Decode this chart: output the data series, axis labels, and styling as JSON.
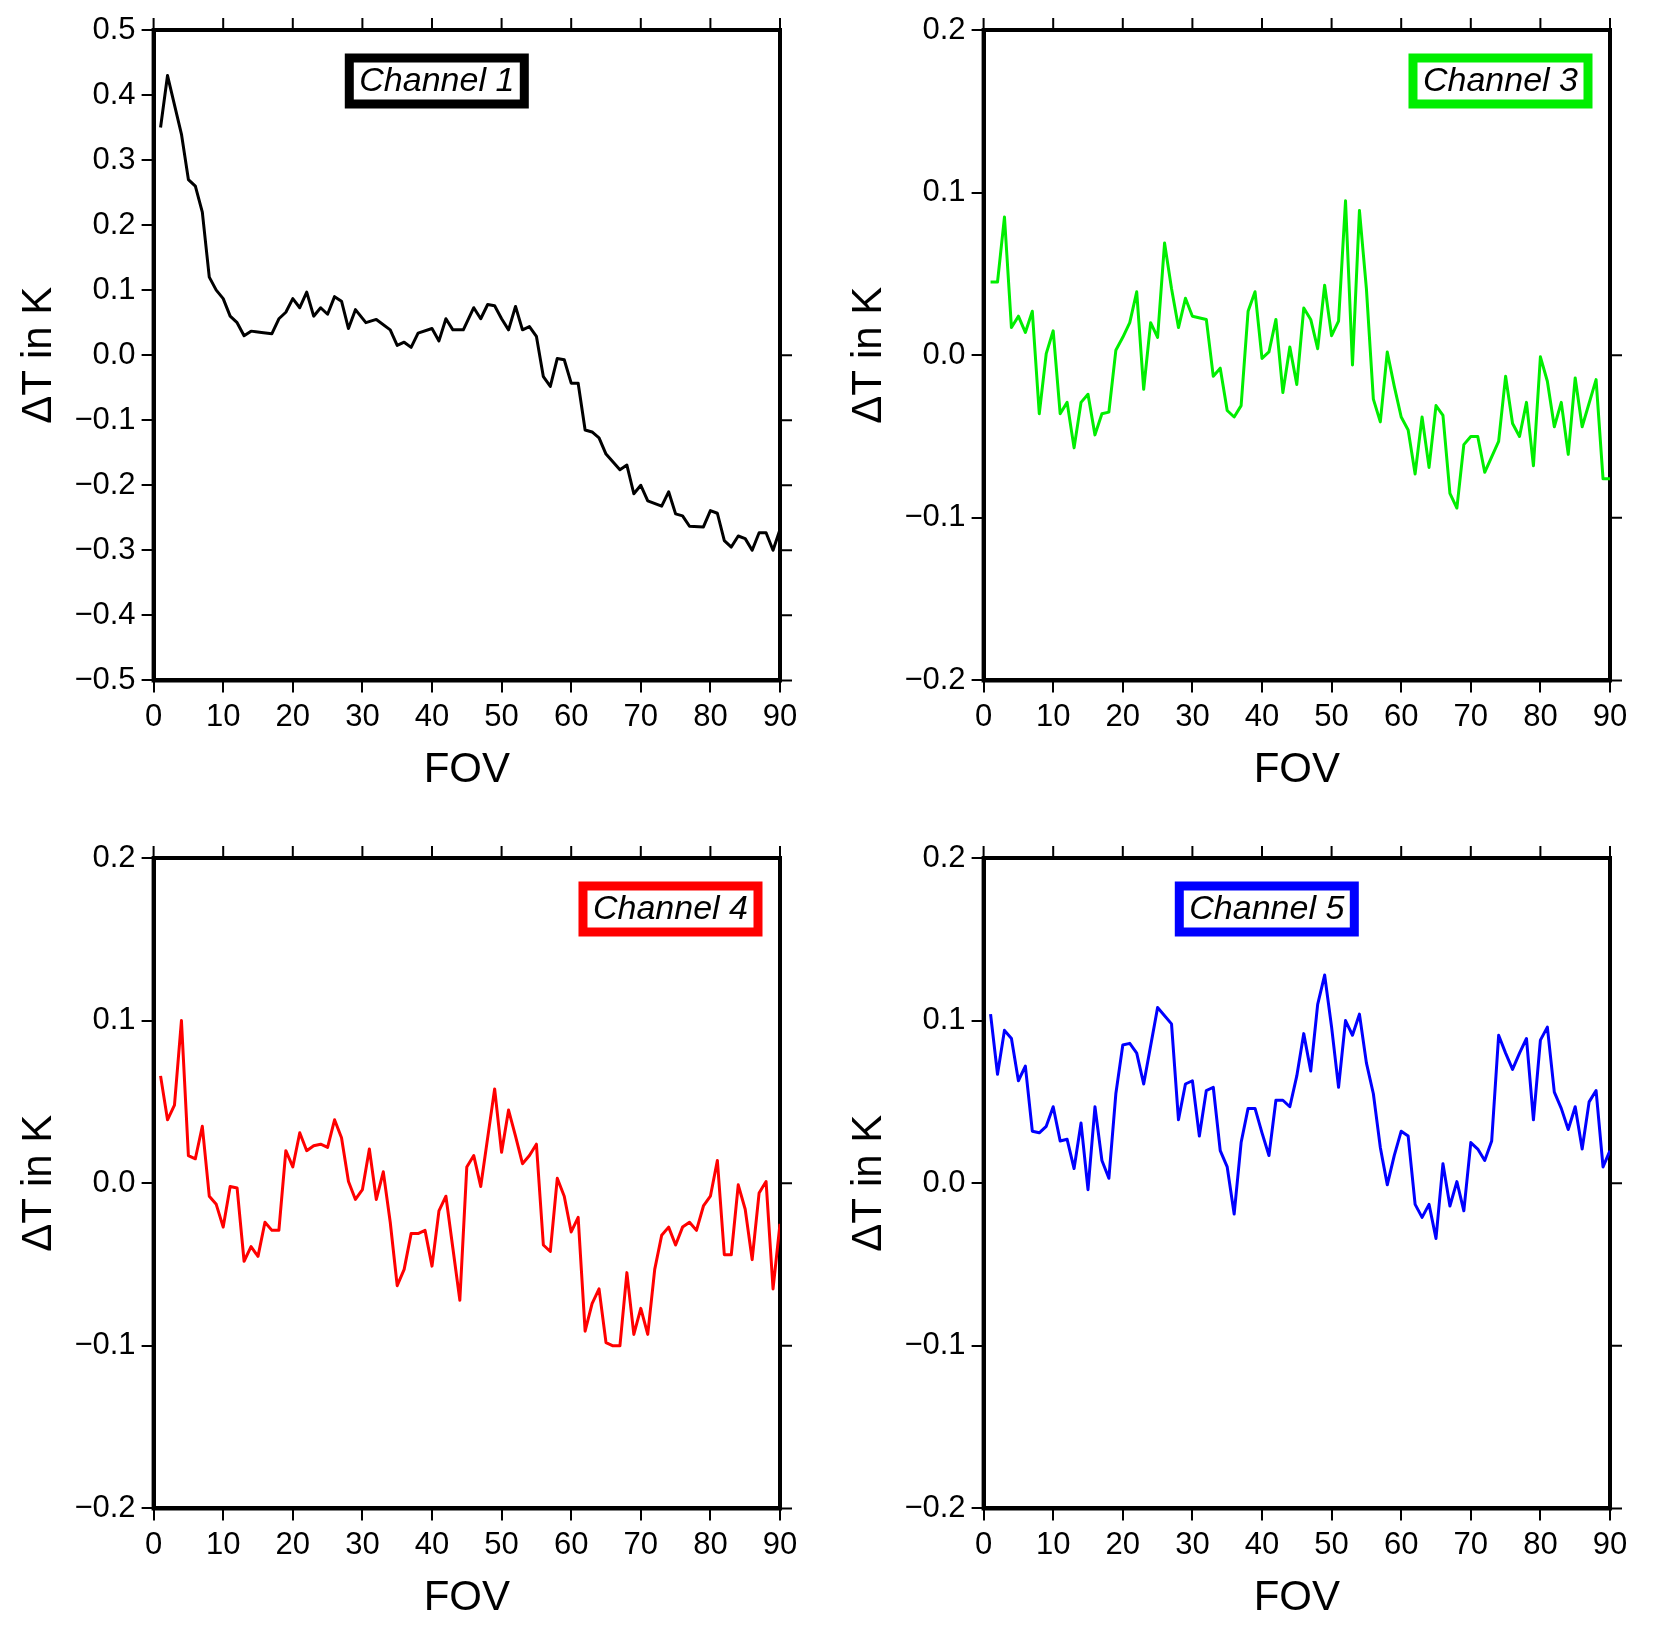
{
  "chart_data": [
    {
      "type": "line",
      "xlabel": "FOV",
      "ylabel": "ΔT in K",
      "legend": "top",
      "xlim": [
        0,
        90
      ],
      "xticks": [
        0,
        10,
        20,
        30,
        40,
        50,
        60,
        70,
        80,
        90
      ],
      "ylim": [
        -0.5,
        0.5
      ],
      "yticks": [
        {
          "value": -0.5,
          "label": "−0.5"
        },
        {
          "value": -0.4,
          "label": "−0.4"
        },
        {
          "value": -0.3,
          "label": "−0.3"
        },
        {
          "value": -0.2,
          "label": "−0.2"
        },
        {
          "value": -0.1,
          "label": "−0.1"
        },
        {
          "value": 0,
          "label": "0.0"
        },
        0.1,
        0.2,
        0.3,
        0.4,
        0.5
      ],
      "x": [
        1,
        2,
        4,
        5,
        6,
        7,
        8,
        9,
        10,
        11,
        12,
        13,
        14,
        15.5,
        17,
        18,
        19,
        20,
        21,
        22,
        23,
        24,
        25,
        26,
        27,
        28,
        29,
        30.5,
        32,
        34,
        35,
        36,
        37,
        38,
        40,
        41,
        42,
        43,
        44.5,
        46,
        47,
        48,
        49,
        50,
        51,
        52,
        53,
        54,
        55,
        56,
        57,
        58,
        59,
        60,
        61,
        62,
        63,
        64,
        65,
        67,
        68,
        69,
        70,
        71,
        73,
        74,
        75,
        76,
        77,
        79,
        80,
        81,
        82,
        83,
        84,
        85,
        86,
        87,
        88,
        89,
        90
      ],
      "series": [
        {
          "name": "Channel 1",
          "color": "#000000",
          "values": [
            0.35,
            0.43,
            0.34,
            0.27,
            0.26,
            0.22,
            0.12,
            0.1,
            0.087,
            0.06,
            0.05,
            0.03,
            0.037,
            0.035,
            0.033,
            0.056,
            0.066,
            0.087,
            0.073,
            0.097,
            0.06,
            0.073,
            0.063,
            0.09,
            0.083,
            0.041,
            0.07,
            0.05,
            0.055,
            0.039,
            0.015,
            0.02,
            0.012,
            0.034,
            0.041,
            0.022,
            0.056,
            0.039,
            0.039,
            0.073,
            0.056,
            0.078,
            0.076,
            0.056,
            0.039,
            0.075,
            0.039,
            0.044,
            0.029,
            -0.033,
            -0.048,
            -0.005,
            -0.007,
            -0.043,
            -0.043,
            -0.115,
            -0.118,
            -0.127,
            -0.152,
            -0.176,
            -0.169,
            -0.213,
            -0.2,
            -0.224,
            -0.232,
            -0.21,
            -0.244,
            -0.247,
            -0.263,
            -0.264,
            -0.239,
            -0.243,
            -0.285,
            -0.295,
            -0.278,
            -0.282,
            -0.3,
            -0.273,
            -0.273,
            -0.3,
            -0.268
          ]
        }
      ]
    },
    {
      "type": "line",
      "xlabel": "FOV",
      "ylabel": "ΔT in K",
      "legend": "top right",
      "xlim": [
        0,
        90
      ],
      "xticks": [
        0,
        10,
        20,
        30,
        40,
        50,
        60,
        70,
        80,
        90
      ],
      "ylim": [
        -0.2,
        0.2
      ],
      "yticks": [
        {
          "value": -0.2,
          "label": "−0.2"
        },
        {
          "value": -0.1,
          "label": "−0.1"
        },
        {
          "value": 0,
          "label": "0.0"
        },
        0.1,
        0.2
      ],
      "x": [
        1,
        2,
        3,
        4,
        5,
        6,
        7,
        8,
        9,
        10,
        11,
        12,
        13,
        14,
        15,
        16,
        17,
        18,
        19,
        20,
        21,
        22,
        23,
        24,
        25,
        26,
        27,
        28,
        29,
        30,
        32,
        33,
        34,
        35,
        36,
        37,
        38,
        39,
        40,
        41,
        42,
        43,
        44,
        45,
        46,
        47,
        48,
        49,
        50,
        51,
        52,
        53,
        54,
        55,
        56,
        57,
        58,
        59,
        60,
        61,
        62,
        63,
        64,
        65,
        66,
        67,
        68,
        69,
        70,
        71,
        72,
        74,
        75,
        76,
        77,
        78,
        79,
        80,
        81,
        82,
        83,
        84,
        85,
        86,
        88,
        89,
        90
      ],
      "series": [
        {
          "name": "Channel 3",
          "color": "#00ee00",
          "values": [
            0.045,
            0.045,
            0.085,
            0.017,
            0.024,
            0.014,
            0.027,
            -0.036,
            0.001,
            0.015,
            -0.036,
            -0.029,
            -0.057,
            -0.029,
            -0.024,
            -0.049,
            -0.036,
            -0.035,
            0.003,
            0.011,
            0.02,
            0.039,
            -0.021,
            0.02,
            0.011,
            0.069,
            0.041,
            0.017,
            0.035,
            0.024,
            0.022,
            -0.013,
            -0.008,
            -0.034,
            -0.038,
            -0.031,
            0.027,
            0.039,
            -0.002,
            0.002,
            0.022,
            -0.023,
            0.005,
            -0.018,
            0.029,
            0.022,
            0.004,
            0.043,
            0.012,
            0.021,
            0.095,
            -0.006,
            0.089,
            0.041,
            -0.027,
            -0.041,
            0.002,
            -0.019,
            -0.038,
            -0.046,
            -0.073,
            -0.038,
            -0.069,
            -0.031,
            -0.037,
            -0.085,
            -0.094,
            -0.055,
            -0.05,
            -0.05,
            -0.072,
            -0.053,
            -0.013,
            -0.042,
            -0.05,
            -0.029,
            -0.068,
            -0.001,
            -0.016,
            -0.044,
            -0.029,
            -0.061,
            -0.014,
            -0.044,
            -0.015,
            -0.076,
            -0.076
          ]
        }
      ]
    },
    {
      "type": "line",
      "xlabel": "FOV",
      "ylabel": "ΔT in K",
      "legend": "top right",
      "xlim": [
        0,
        90
      ],
      "xticks": [
        0,
        10,
        20,
        30,
        40,
        50,
        60,
        70,
        80,
        90
      ],
      "ylim": [
        -0.2,
        0.2
      ],
      "yticks": [
        {
          "value": -0.2,
          "label": "−0.2"
        },
        {
          "value": -0.1,
          "label": "−0.1"
        },
        {
          "value": 0,
          "label": "0.0"
        },
        0.1,
        0.2
      ],
      "x": [
        1,
        2,
        3,
        4,
        5,
        6,
        7,
        8,
        9,
        10,
        11,
        12,
        13,
        14,
        15,
        16,
        17,
        18,
        19,
        20,
        21,
        22,
        23,
        24,
        25,
        26,
        27,
        28,
        29,
        30,
        31,
        32,
        33,
        34,
        35,
        36,
        37,
        38,
        39,
        40,
        41,
        42,
        43,
        44,
        45,
        46,
        47,
        49,
        50,
        51,
        52,
        53,
        54,
        55,
        56,
        57,
        58,
        59,
        60,
        61,
        62,
        63,
        64,
        65,
        66,
        67,
        68,
        69,
        70,
        71,
        72,
        73,
        74,
        75,
        76,
        77,
        78,
        79,
        80,
        81,
        82,
        83,
        84,
        85,
        86,
        87,
        88,
        89,
        90
      ],
      "series": [
        {
          "name": "Channel 4",
          "color": "#ff0000",
          "values": [
            0.066,
            0.039,
            0.048,
            0.1,
            0.017,
            0.015,
            0.035,
            -0.008,
            -0.013,
            -0.027,
            -0.002,
            -0.003,
            -0.048,
            -0.039,
            -0.045,
            -0.024,
            -0.029,
            -0.029,
            0.02,
            0.01,
            0.031,
            0.02,
            0.023,
            0.024,
            0.022,
            0.039,
            0.028,
            0.001,
            -0.01,
            -0.004,
            0.021,
            -0.01,
            0.007,
            -0.024,
            -0.063,
            -0.053,
            -0.031,
            -0.031,
            -0.029,
            -0.051,
            -0.017,
            -0.008,
            -0.04,
            -0.072,
            0.01,
            0.017,
            -0.002,
            0.058,
            0.019,
            0.045,
            0.029,
            0.012,
            0.017,
            0.024,
            -0.038,
            -0.042,
            0.003,
            -0.008,
            -0.03,
            -0.021,
            -0.091,
            -0.074,
            -0.065,
            -0.098,
            -0.1,
            -0.1,
            -0.055,
            -0.093,
            -0.077,
            -0.093,
            -0.053,
            -0.032,
            -0.027,
            -0.038,
            -0.027,
            -0.024,
            -0.029,
            -0.014,
            -0.008,
            0.014,
            -0.044,
            -0.044,
            -0.001,
            -0.016,
            -0.047,
            -0.006,
            0.001,
            -0.065,
            -0.025
          ]
        }
      ]
    },
    {
      "type": "line",
      "xlabel": "FOV",
      "ylabel": "ΔT in K",
      "legend": "top",
      "xlim": [
        0,
        90
      ],
      "xticks": [
        0,
        10,
        20,
        30,
        40,
        50,
        60,
        70,
        80,
        90
      ],
      "ylim": [
        -0.2,
        0.2
      ],
      "yticks": [
        {
          "value": -0.2,
          "label": "−0.2"
        },
        {
          "value": -0.1,
          "label": "−0.1"
        },
        {
          "value": 0,
          "label": "0.0"
        },
        0.1,
        0.2
      ],
      "x": [
        1,
        2,
        3,
        4,
        5,
        6,
        7,
        8,
        9,
        10,
        11,
        12,
        13,
        14,
        15,
        16,
        17,
        18,
        19,
        20,
        21,
        22,
        23,
        25,
        27,
        28,
        29,
        30,
        31,
        32,
        33,
        34,
        35,
        36,
        37,
        38,
        39,
        40,
        41,
        42,
        43,
        44,
        45,
        46,
        47,
        48,
        49,
        50,
        51,
        52,
        53,
        54,
        55,
        56,
        57,
        58,
        59,
        60,
        61,
        62,
        63,
        64,
        65,
        66,
        67,
        68,
        69,
        70,
        71,
        72,
        73,
        74,
        75,
        76,
        77,
        78,
        79,
        80,
        81,
        82,
        83,
        84,
        85,
        86,
        87,
        88,
        89,
        90
      ],
      "series": [
        {
          "name": "Channel 5",
          "color": "#0000ff",
          "values": [
            0.104,
            0.067,
            0.094,
            0.089,
            0.063,
            0.072,
            0.032,
            0.031,
            0.035,
            0.047,
            0.026,
            0.027,
            0.009,
            0.037,
            -0.004,
            0.047,
            0.014,
            0.003,
            0.055,
            0.085,
            0.086,
            0.08,
            0.061,
            0.108,
            0.098,
            0.039,
            0.061,
            0.063,
            0.029,
            0.057,
            0.059,
            0.02,
            0.01,
            -0.019,
            0.025,
            0.046,
            0.046,
            0.031,
            0.017,
            0.051,
            0.051,
            0.047,
            0.066,
            0.092,
            0.069,
            0.11,
            0.128,
            0.096,
            0.059,
            0.1,
            0.091,
            0.104,
            0.074,
            0.055,
            0.022,
            -0.001,
            0.017,
            0.032,
            0.029,
            -0.013,
            -0.021,
            -0.013,
            -0.034,
            0.012,
            -0.014,
            0.001,
            -0.017,
            0.025,
            0.021,
            0.014,
            0.026,
            0.091,
            0.08,
            0.07,
            0.08,
            0.089,
            0.039,
            0.088,
            0.096,
            0.056,
            0.046,
            0.033,
            0.047,
            0.021,
            0.05,
            0.057,
            0.01,
            0.02
          ]
        }
      ]
    }
  ]
}
